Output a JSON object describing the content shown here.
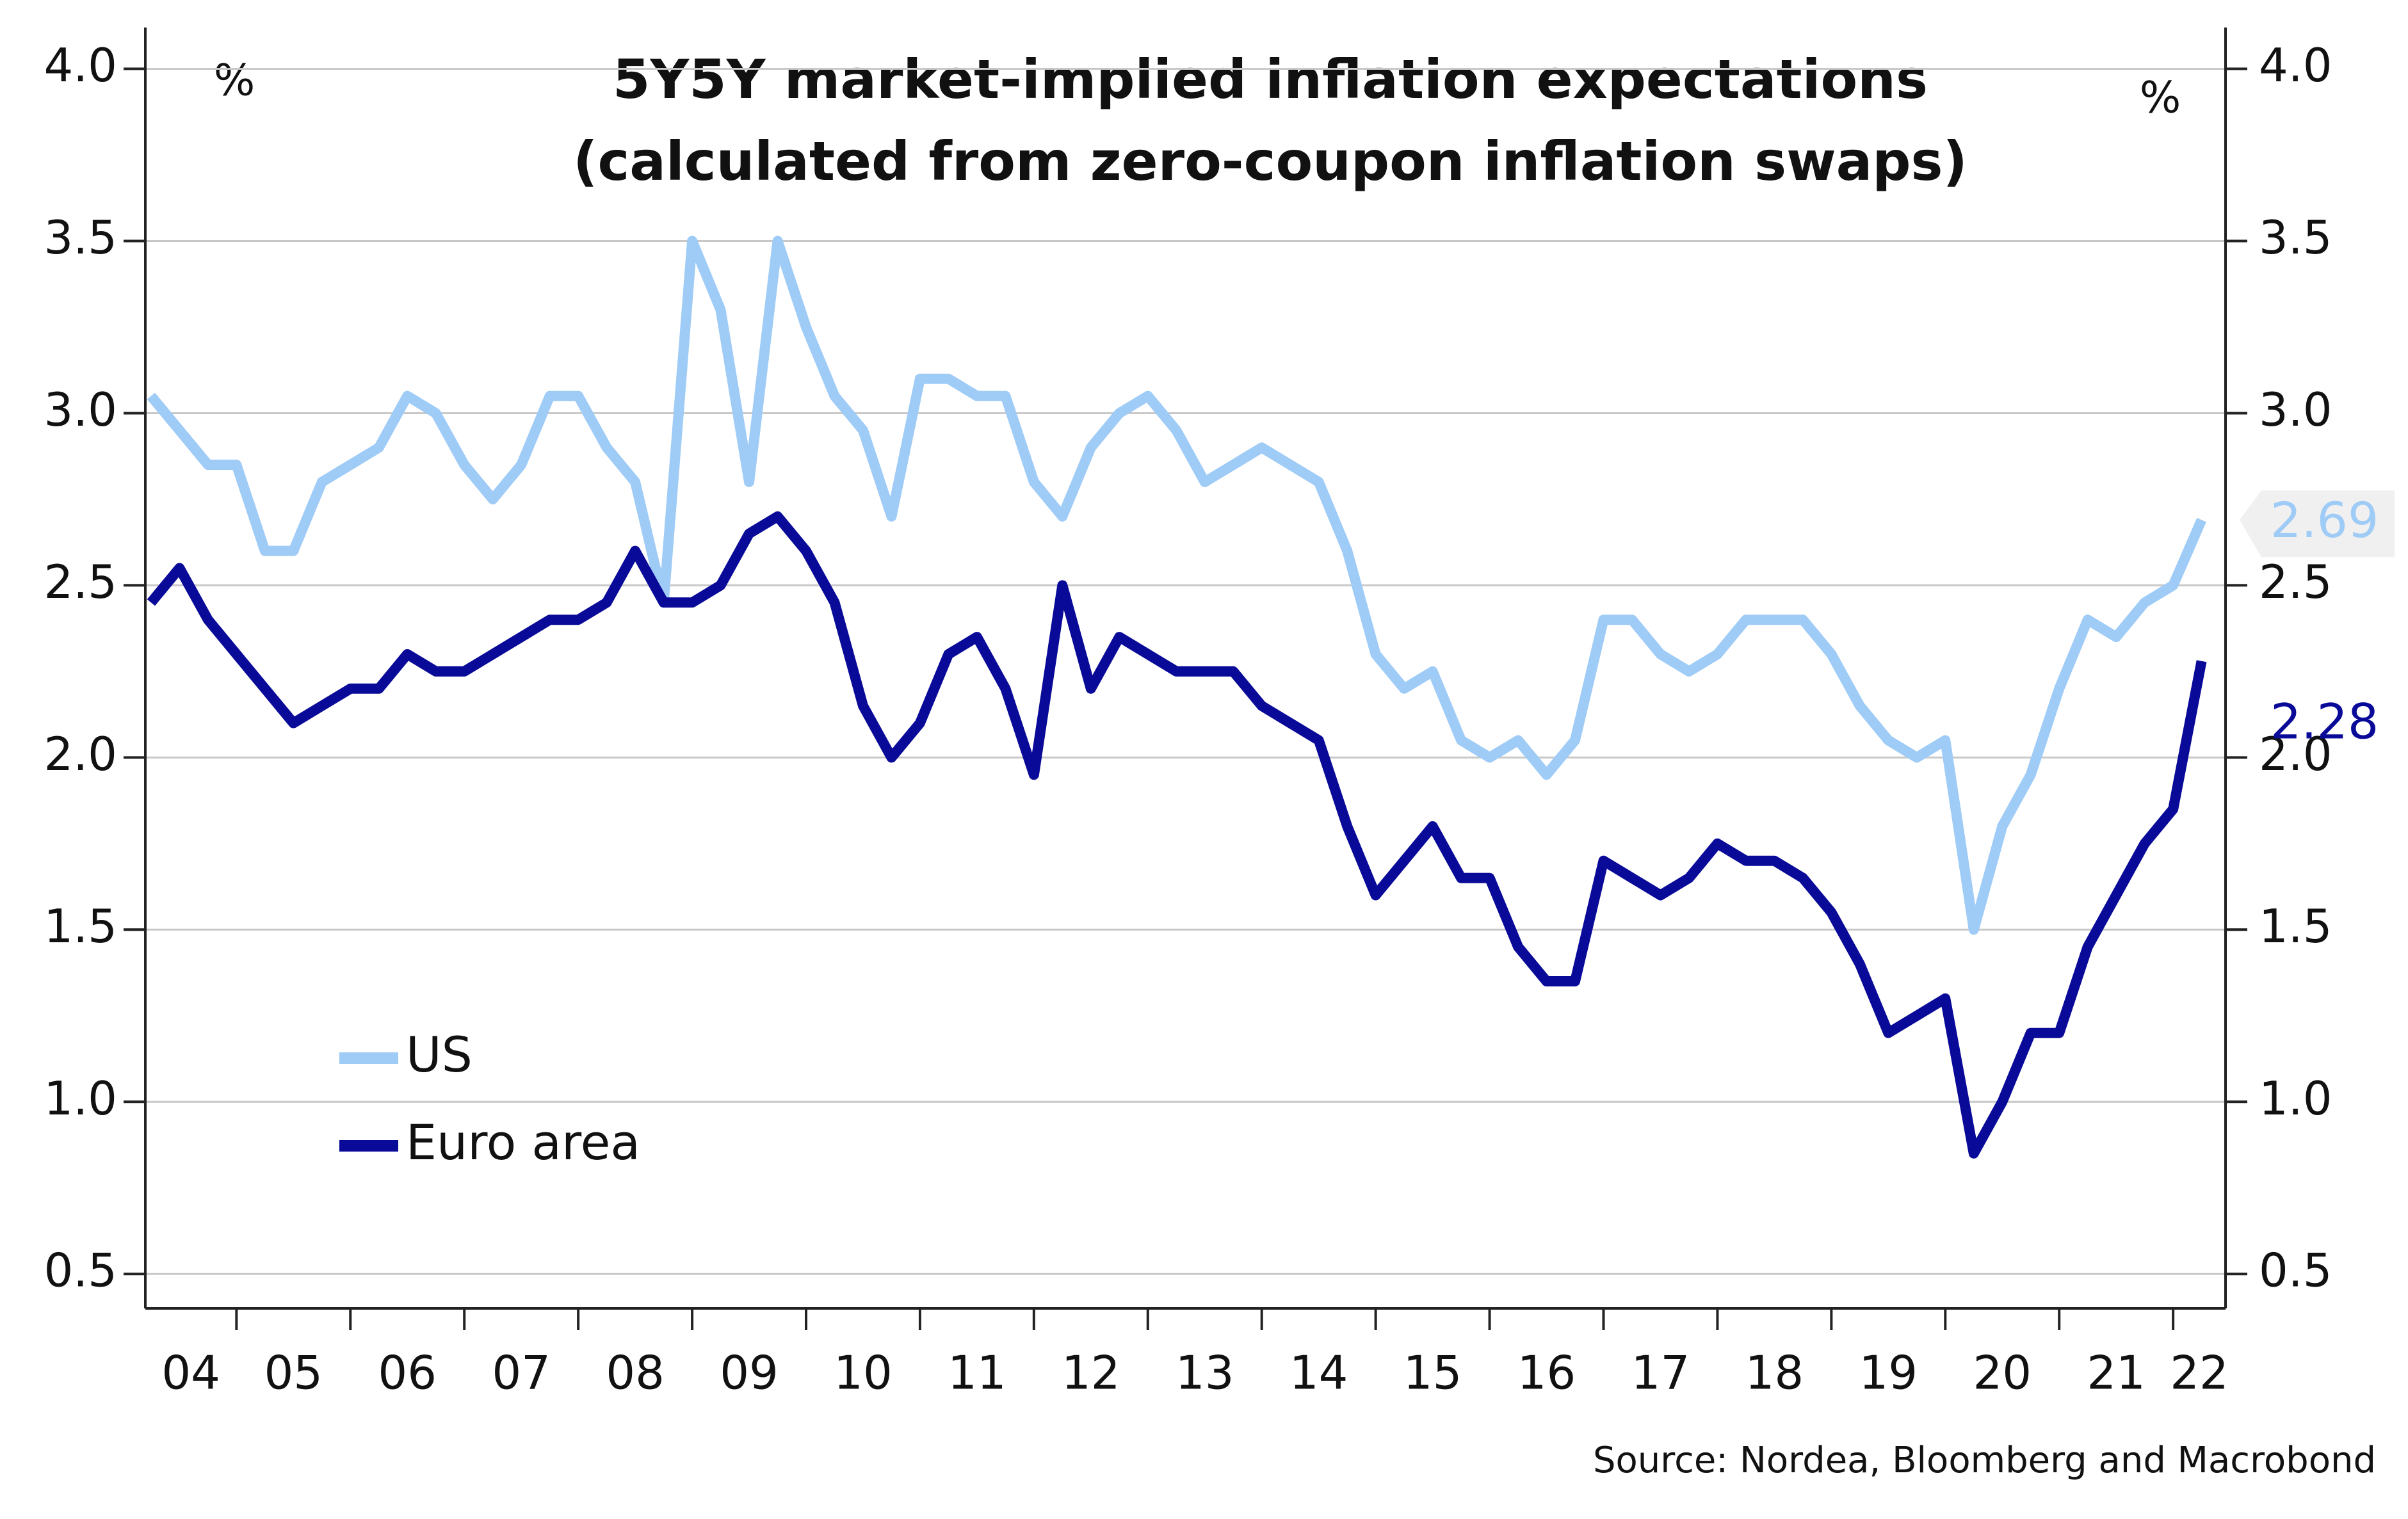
{
  "chart_data": {
    "type": "line",
    "title": [
      "5Y5Y market-implied inflation expectations",
      "(calculated from zero-coupon inflation swaps)"
    ],
    "y_unit": "%",
    "y2_unit": "%",
    "source": "Source: Nordea, Bloomberg and Macrobond",
    "xlim": [
      2004.2,
      2022.46
    ],
    "xticks": [
      2005,
      2006,
      2007,
      2008,
      2009,
      2010,
      2011,
      2012,
      2013,
      2014,
      2015,
      2016,
      2017,
      2018,
      2019,
      2020,
      2021,
      2022
    ],
    "xtick_labels": [
      {
        "value": 2004.6,
        "label": "04"
      },
      {
        "value": 2005.5,
        "label": "05"
      },
      {
        "value": 2006.5,
        "label": "06"
      },
      {
        "value": 2007.5,
        "label": "07"
      },
      {
        "value": 2008.5,
        "label": "08"
      },
      {
        "value": 2009.5,
        "label": "09"
      },
      {
        "value": 2010.5,
        "label": "10"
      },
      {
        "value": 2011.5,
        "label": "11"
      },
      {
        "value": 2012.5,
        "label": "12"
      },
      {
        "value": 2013.5,
        "label": "13"
      },
      {
        "value": 2014.5,
        "label": "14"
      },
      {
        "value": 2015.5,
        "label": "15"
      },
      {
        "value": 2016.5,
        "label": "16"
      },
      {
        "value": 2017.5,
        "label": "17"
      },
      {
        "value": 2018.5,
        "label": "18"
      },
      {
        "value": 2019.5,
        "label": "19"
      },
      {
        "value": 2020.5,
        "label": "20"
      },
      {
        "value": 2021.5,
        "label": "21"
      },
      {
        "value": 2022.23,
        "label": "22"
      }
    ],
    "ylim": [
      0.4,
      4.12
    ],
    "yticks": [
      {
        "value": 0.5,
        "label": "0.5"
      },
      {
        "value": 1,
        "label": "1.0"
      },
      {
        "value": 1.5,
        "label": "1.5"
      },
      {
        "value": 2,
        "label": "2.0"
      },
      {
        "value": 2.5,
        "label": "2.5"
      },
      {
        "value": 3,
        "label": "3.0"
      },
      {
        "value": 3.5,
        "label": "3.5"
      },
      {
        "value": 4,
        "label": "4.0"
      }
    ],
    "y2lim": [
      0.4,
      4.12
    ],
    "y2ticks": [
      {
        "value": 0.5,
        "label": "0.5"
      },
      {
        "value": 1,
        "label": "1.0"
      },
      {
        "value": 1.5,
        "label": "1.5"
      },
      {
        "value": 2,
        "label": "2.0"
      },
      {
        "value": 2.5,
        "label": "2.5"
      },
      {
        "value": 3,
        "label": "3.0"
      },
      {
        "value": 3.5,
        "label": "3.5"
      },
      {
        "value": 4,
        "label": "4.0"
      }
    ],
    "grid": true,
    "legend": "lower-left",
    "x": [
      2004.25,
      2004.5,
      2004.75,
      2005,
      2005.25,
      2005.5,
      2005.75,
      2006,
      2006.25,
      2006.5,
      2006.75,
      2007,
      2007.25,
      2007.5,
      2007.75,
      2008,
      2008.25,
      2008.5,
      2008.75,
      2009,
      2009.25,
      2009.5,
      2009.75,
      2010,
      2010.25,
      2010.5,
      2010.75,
      2011,
      2011.25,
      2011.5,
      2011.75,
      2012,
      2012.25,
      2012.5,
      2012.75,
      2013,
      2013.25,
      2013.5,
      2013.75,
      2014,
      2014.25,
      2014.5,
      2014.75,
      2015,
      2015.25,
      2015.5,
      2015.75,
      2016,
      2016.25,
      2016.5,
      2016.75,
      2017,
      2017.25,
      2017.5,
      2017.75,
      2018,
      2018.25,
      2018.5,
      2018.75,
      2019,
      2019.25,
      2019.5,
      2019.75,
      2020,
      2020.25,
      2020.5,
      2020.75,
      2021,
      2021.25,
      2021.5,
      2021.75,
      2022,
      2022.25
    ],
    "series": [
      {
        "name": "US",
        "color": "#9fcbf7",
        "values": [
          3.05,
          2.95,
          2.85,
          2.85,
          2.6,
          2.6,
          2.8,
          2.85,
          2.9,
          3.05,
          3.0,
          2.85,
          2.75,
          2.85,
          3.05,
          3.05,
          2.9,
          2.8,
          2.45,
          3.5,
          3.3,
          2.8,
          3.5,
          3.25,
          3.05,
          2.95,
          2.7,
          3.1,
          3.1,
          3.05,
          3.05,
          2.8,
          2.7,
          2.9,
          3.0,
          3.05,
          2.95,
          2.8,
          2.85,
          2.9,
          2.85,
          2.8,
          2.6,
          2.3,
          2.2,
          2.25,
          2.05,
          2.0,
          2.05,
          1.95,
          2.05,
          2.4,
          2.4,
          2.3,
          2.25,
          2.3,
          2.4,
          2.4,
          2.4,
          2.3,
          2.15,
          2.05,
          2.0,
          2.05,
          1.5,
          1.8,
          1.95,
          2.2,
          2.4,
          2.35,
          2.45,
          2.5,
          2.69
        ],
        "end_label": {
          "value": 2.69,
          "label": "2.69"
        }
      },
      {
        "name": "Euro area",
        "color": "#0a0a99",
        "values": [
          2.45,
          2.55,
          2.4,
          2.3,
          2.2,
          2.1,
          2.15,
          2.2,
          2.2,
          2.3,
          2.25,
          2.25,
          2.3,
          2.35,
          2.4,
          2.4,
          2.45,
          2.6,
          2.45,
          2.45,
          2.5,
          2.65,
          2.7,
          2.6,
          2.45,
          2.15,
          2.0,
          2.1,
          2.3,
          2.35,
          2.2,
          1.95,
          2.5,
          2.2,
          2.35,
          2.3,
          2.25,
          2.25,
          2.25,
          2.15,
          2.1,
          2.05,
          1.8,
          1.6,
          1.7,
          1.8,
          1.65,
          1.65,
          1.45,
          1.35,
          1.35,
          1.7,
          1.65,
          1.6,
          1.65,
          1.75,
          1.7,
          1.7,
          1.65,
          1.55,
          1.4,
          1.2,
          1.25,
          1.3,
          0.85,
          1.0,
          1.2,
          1.2,
          1.45,
          1.6,
          1.75,
          1.85,
          2.28
        ],
        "end_label": {
          "value": 2.28,
          "label": "2.28"
        }
      }
    ]
  }
}
